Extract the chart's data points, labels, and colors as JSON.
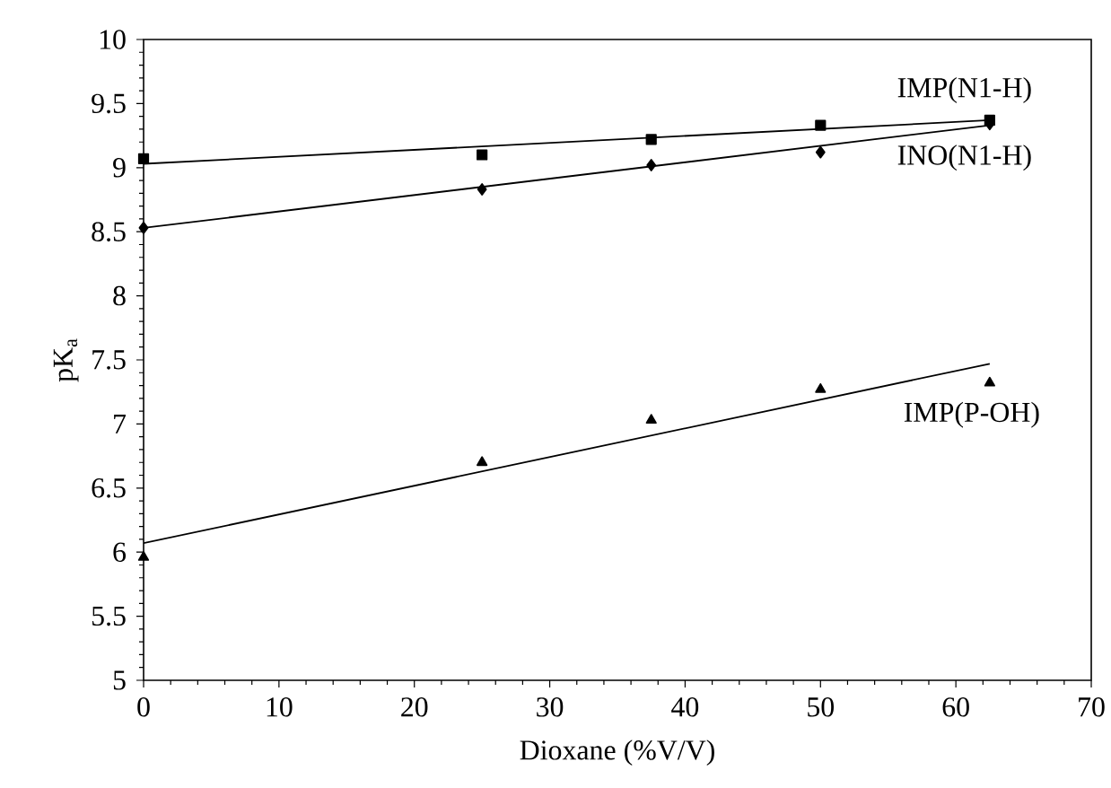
{
  "chart_data": {
    "type": "scatter",
    "xlabel": "Dioxane (%V/V)",
    "ylabel": "pK$_{a}$",
    "xlim": [
      0,
      70
    ],
    "xticks": [
      0,
      10,
      20,
      30,
      40,
      50,
      60,
      70
    ],
    "ylim": [
      5,
      10
    ],
    "yticks": [
      5,
      5.5,
      6,
      6.5,
      7,
      7.5,
      8,
      8.5,
      9,
      9.5,
      10
    ],
    "grid": false,
    "legend": false,
    "series": [
      {
        "name": "IMP(N1-H)",
        "color": "#000000",
        "marker": "square",
        "x": [
          0,
          25,
          37.5,
          50,
          62.5
        ],
        "values": [
          9.07,
          9.1,
          9.22,
          9.33,
          9.37
        ]
      },
      {
        "name": "INO(N1-H)",
        "color": "#000000",
        "marker": "diamond",
        "x": [
          0,
          25,
          37.5,
          50,
          62.5
        ],
        "values": [
          8.53,
          8.83,
          9.02,
          9.12,
          9.34
        ]
      },
      {
        "name": "IMP(P-OH)",
        "color": "#000000",
        "marker": "triangle",
        "x": [
          0,
          25,
          37.5,
          50,
          62.5
        ],
        "values": [
          5.96,
          6.7,
          7.03,
          7.27,
          7.32
        ]
      },
      {
        "type": "line",
        "color": "#000000",
        "marker": "none",
        "x": [
          0,
          62.5
        ],
        "values": [
          9.03,
          9.37
        ]
      },
      {
        "type": "line",
        "color": "#000000",
        "marker": "none",
        "x": [
          0,
          62.5
        ],
        "values": [
          8.53,
          9.33
        ]
      },
      {
        "type": "line",
        "color": "#000000",
        "marker": "none",
        "x": [
          0,
          62.5
        ],
        "values": [
          6.07,
          7.47
        ]
      }
    ]
  }
}
